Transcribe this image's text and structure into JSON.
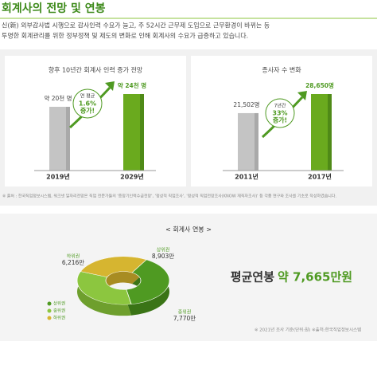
{
  "header": {
    "title": "회계사의 전망 및 연봉",
    "intro": [
      "신(新) 외부감사법 시행으로 감사인력 수요가 늘고, 주 52시간 근무제 도입으로 근무환경이 바뀌는 등",
      "투명한 회계관리를 위한 정부정책 및 제도의 변화로 인해 회계사의 수요가 급증하고 있습니다."
    ]
  },
  "note": "※ 출처 : 한국직업정보시스템, 워크넷 일자리전망은 직업 전문가들의 '중장기인력수급전망', '정성적 직업조사', '정성적 직업전망조사(KNOW 재직자조사)' 등 각종 연구와 조사를 기초로 작성하였습니다.",
  "chart_data": [
    {
      "type": "bar",
      "title": "향후 10년간 회계사 인력 증가 전망",
      "categories": [
        "2019년",
        "2029년"
      ],
      "values": [
        20,
        24
      ],
      "value_labels": [
        "약 20천 명",
        "약 24천 명"
      ],
      "colors": [
        "#c4c4c4",
        "#6aaa1e"
      ],
      "annotation": [
        "연 평균",
        "1.6%",
        "증가!"
      ]
    },
    {
      "type": "bar",
      "title": "종사자 수 변화",
      "categories": [
        "2011년",
        "2017년"
      ],
      "values": [
        21502,
        28650
      ],
      "value_labels": [
        "21,502명",
        "28,650명"
      ],
      "colors": [
        "#c4c4c4",
        "#6aaa1e"
      ],
      "annotation": [
        "7년간",
        "33%",
        "증가!"
      ]
    },
    {
      "type": "pie",
      "title": "< 회계사 연봉 >",
      "categories": [
        "상위권",
        "중위권",
        "하위권"
      ],
      "values": [
        8903,
        7770,
        6216
      ],
      "value_labels": [
        "8,903만",
        "7,770만",
        "6,216만"
      ],
      "colors": [
        "#4f9a22",
        "#8cc63f",
        "#d6b530"
      ]
    }
  ],
  "pay": {
    "label": "평균연봉",
    "value": "약 7,665만원"
  },
  "footer": "※ 2021년 조사 기준(단위:원)  ※출처:한국직업정보시스템"
}
